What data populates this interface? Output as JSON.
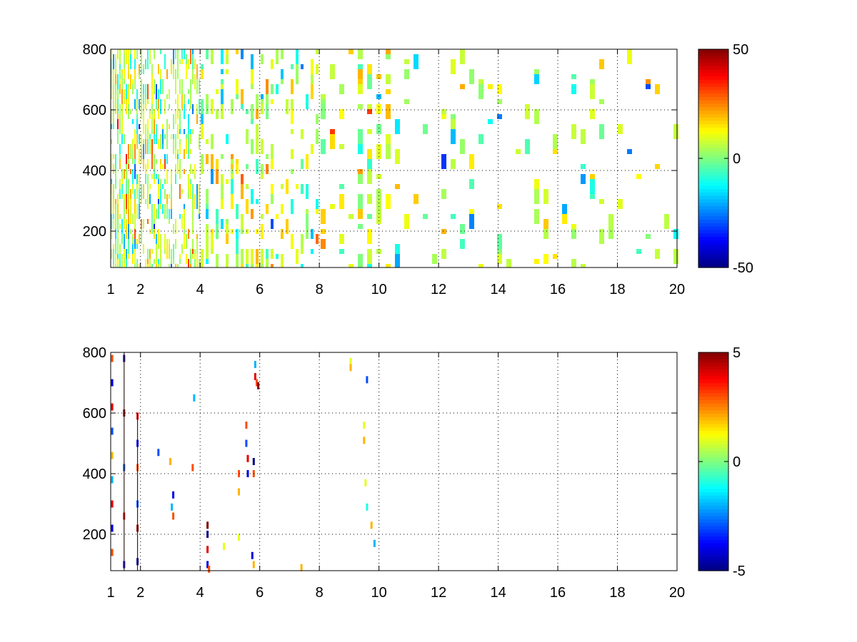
{
  "chart_data": [
    {
      "type": "heatmap",
      "title": "",
      "xlabel": "",
      "ylabel": "",
      "xlim": [
        1,
        20
      ],
      "ylim": [
        80,
        800
      ],
      "x_ticks": [
        "1",
        "2",
        "4",
        "6",
        "8",
        "10",
        "12",
        "14",
        "16",
        "18",
        "20"
      ],
      "x_tick_values": [
        1,
        2,
        4,
        6,
        8,
        10,
        12,
        14,
        16,
        18,
        20
      ],
      "y_ticks": [
        "200",
        "400",
        "600",
        "800"
      ],
      "y_tick_values": [
        200,
        400,
        600,
        800
      ],
      "grid": true,
      "colormap": "jet",
      "colorbar": {
        "min": -50,
        "max": 50,
        "ticks": [
          "50",
          "0",
          "-50"
        ],
        "tick_values": [
          50,
          0,
          -50
        ]
      },
      "description_note_free": true,
      "x_band_density": [
        [
          1.0,
          0.95
        ],
        [
          1.5,
          0.85
        ],
        [
          2.0,
          0.8
        ],
        [
          3.0,
          0.7
        ],
        [
          4.0,
          0.65
        ],
        [
          5.0,
          0.55
        ],
        [
          6.0,
          0.5
        ],
        [
          7.0,
          0.35
        ],
        [
          8.0,
          0.35
        ],
        [
          9.0,
          0.45
        ],
        [
          9.5,
          0.6
        ],
        [
          10.0,
          0.5
        ],
        [
          11.0,
          0.35
        ],
        [
          12.0,
          0.25
        ],
        [
          13.0,
          0.25
        ],
        [
          14.0,
          0.28
        ],
        [
          15.0,
          0.22
        ],
        [
          16.0,
          0.2
        ],
        [
          17.0,
          0.22
        ],
        [
          18.0,
          0.25
        ],
        [
          19.0,
          0.22
        ],
        [
          20.0,
          0.2
        ]
      ],
      "value_spread": 14
    },
    {
      "type": "heatmap",
      "title": "",
      "xlabel": "",
      "ylabel": "",
      "xlim": [
        1,
        20
      ],
      "ylim": [
        80,
        800
      ],
      "x_ticks": [
        "1",
        "2",
        "4",
        "6",
        "8",
        "10",
        "12",
        "14",
        "16",
        "18",
        "20"
      ],
      "x_tick_values": [
        1,
        2,
        4,
        6,
        8,
        10,
        12,
        14,
        16,
        18,
        20
      ],
      "y_ticks": [
        "200",
        "400",
        "600",
        "800"
      ],
      "y_tick_values": [
        200,
        400,
        600,
        800
      ],
      "grid": true,
      "colormap": "jet",
      "colorbar": {
        "min": -5,
        "max": 5,
        "ticks": [
          "5",
          "0",
          "-5"
        ],
        "tick_values": [
          5,
          0,
          -5
        ]
      },
      "sparse_points": [
        [
          1.05,
          780,
          3
        ],
        [
          1.05,
          700,
          -4
        ],
        [
          1.05,
          620,
          4
        ],
        [
          1.05,
          540,
          -3
        ],
        [
          1.05,
          460,
          2
        ],
        [
          1.05,
          380,
          -2
        ],
        [
          1.05,
          300,
          4
        ],
        [
          1.05,
          220,
          -4
        ],
        [
          1.05,
          140,
          3
        ],
        [
          1.45,
          780,
          -5
        ],
        [
          1.45,
          600,
          5
        ],
        [
          1.45,
          420,
          -3
        ],
        [
          1.45,
          260,
          4
        ],
        [
          1.45,
          100,
          -4
        ],
        [
          1.9,
          590,
          4
        ],
        [
          1.9,
          500,
          -4
        ],
        [
          1.9,
          420,
          3
        ],
        [
          1.9,
          300,
          -3
        ],
        [
          1.9,
          220,
          5
        ],
        [
          1.9,
          110,
          -5
        ],
        [
          2.6,
          470,
          -3
        ],
        [
          3.0,
          440,
          2
        ],
        [
          3.1,
          330,
          -4
        ],
        [
          3.1,
          260,
          3
        ],
        [
          3.05,
          290,
          -2
        ],
        [
          3.8,
          650,
          -2
        ],
        [
          3.75,
          420,
          3
        ],
        [
          4.25,
          230,
          5
        ],
        [
          4.25,
          200,
          -5
        ],
        [
          4.25,
          150,
          4
        ],
        [
          4.25,
          100,
          -4
        ],
        [
          4.3,
          85,
          3
        ],
        [
          4.8,
          160,
          1
        ],
        [
          5.3,
          400,
          3
        ],
        [
          5.3,
          340,
          2
        ],
        [
          5.3,
          190,
          1
        ],
        [
          5.55,
          560,
          3
        ],
        [
          5.55,
          500,
          -3
        ],
        [
          5.6,
          450,
          4
        ],
        [
          5.6,
          400,
          -4
        ],
        [
          5.8,
          440,
          -5
        ],
        [
          5.8,
          400,
          3
        ],
        [
          5.85,
          760,
          -2
        ],
        [
          5.85,
          720,
          4
        ],
        [
          5.9,
          700,
          3
        ],
        [
          5.95,
          690,
          5
        ],
        [
          5.75,
          130,
          -4
        ],
        [
          5.8,
          100,
          2
        ],
        [
          7.4,
          90,
          2
        ],
        [
          9.05,
          770,
          1
        ],
        [
          9.05,
          750,
          2
        ],
        [
          9.5,
          560,
          1
        ],
        [
          9.5,
          510,
          2
        ],
        [
          9.6,
          710,
          -3
        ],
        [
          9.55,
          370,
          1
        ],
        [
          9.6,
          290,
          -1
        ],
        [
          9.75,
          230,
          2
        ],
        [
          9.85,
          170,
          -2
        ]
      ]
    }
  ]
}
